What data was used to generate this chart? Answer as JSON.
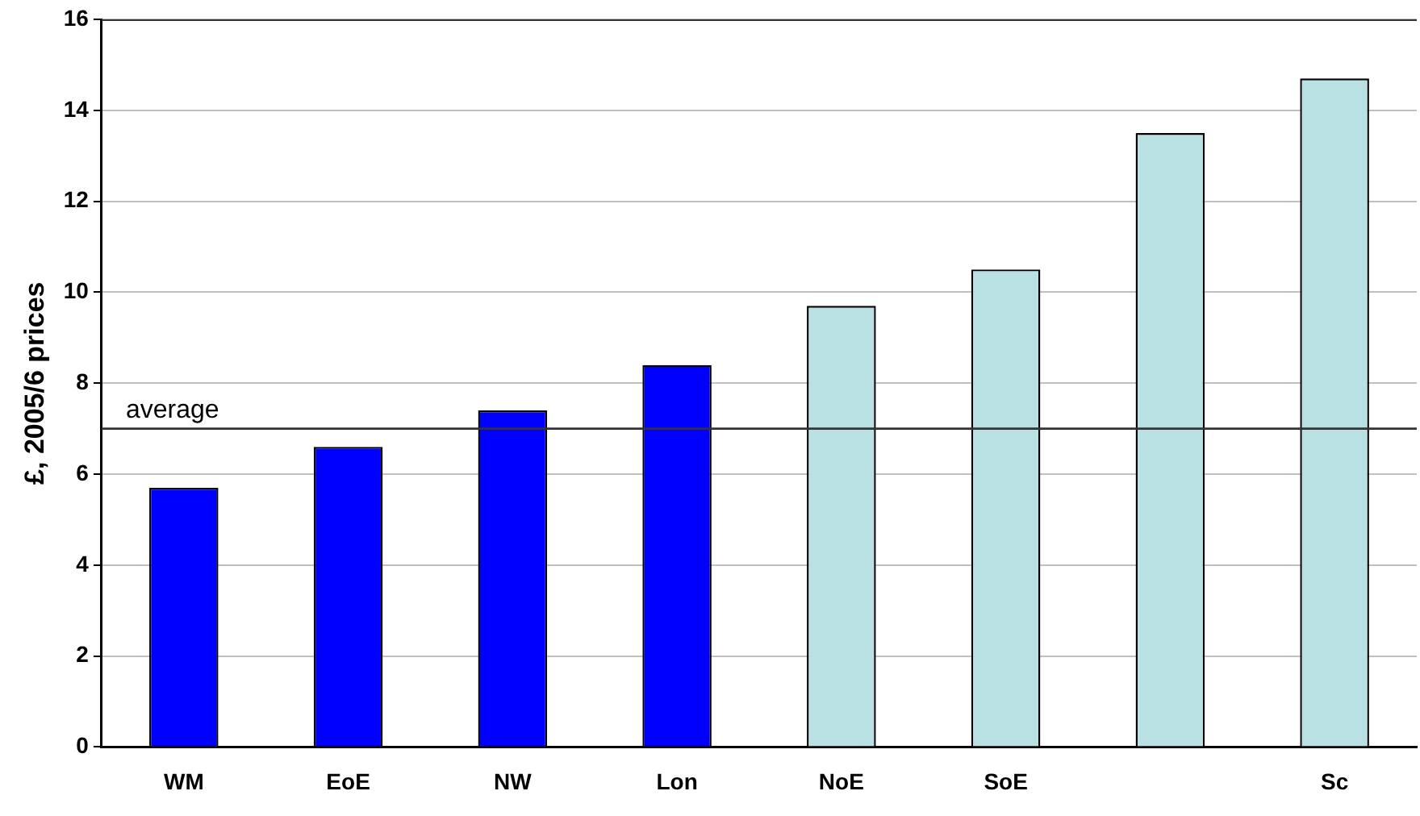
{
  "chart_data": {
    "type": "bar",
    "ylabel": "£, 2005/6 prices",
    "categories": [
      "WM",
      "EoE",
      "NW",
      "Lon",
      "NoE",
      "SoE",
      null,
      "Sc"
    ],
    "values": [
      5.7,
      6.6,
      7.4,
      8.4,
      9.7,
      10.5,
      13.5,
      14.7
    ],
    "colors": [
      "#0000ff",
      "#0000ff",
      "#0000ff",
      "#0000ff",
      "#b9e0e3",
      "#b9e0e3",
      "#b9e0e3",
      "#b9e0e3"
    ],
    "ylim": [
      0,
      16
    ],
    "yticks": [
      0,
      2,
      4,
      6,
      8,
      10,
      12,
      14,
      16
    ],
    "grid": "y",
    "legend": false,
    "ref_lines": [
      {
        "axis": "y",
        "value": 7,
        "label": "average",
        "color": "#333333"
      }
    ]
  }
}
